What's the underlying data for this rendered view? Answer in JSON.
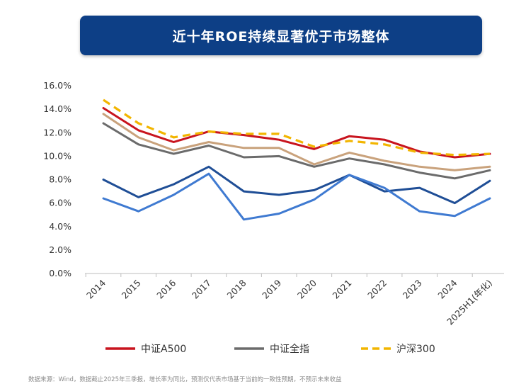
{
  "header": {
    "title": "近十年ROE持续显著优于市场整体"
  },
  "footer": {
    "source": "数据来源：Wind，数据截止2025年三季报，增长率为同比，预测仅代表市场基于当前的一致性预期，不预示未来收益"
  },
  "chart_data": {
    "type": "line",
    "title": "近十年ROE持续显著优于市场整体",
    "xlabel": "",
    "ylabel": "",
    "categories": [
      "2014",
      "2015",
      "2016",
      "2017",
      "2018",
      "2019",
      "2020",
      "2021",
      "2022",
      "2023",
      "2024",
      "2025H1(年化)"
    ],
    "y_ticks": [
      "0.0%",
      "2.0%",
      "4.0%",
      "6.0%",
      "8.0%",
      "10.0%",
      "12.0%",
      "14.0%",
      "16.0%"
    ],
    "ylim": [
      0,
      16
    ],
    "grid": false,
    "legend_position": "bottom",
    "series": [
      {
        "name": "中证A500",
        "color": "#c8141e",
        "dash": false,
        "in_legend": true,
        "values": [
          14.1,
          12.2,
          11.2,
          12.1,
          11.8,
          11.4,
          10.6,
          11.7,
          11.4,
          10.4,
          9.9,
          10.2
        ]
      },
      {
        "name": "",
        "color": "#c9a27c",
        "dash": false,
        "in_legend": false,
        "values": [
          13.6,
          11.6,
          10.5,
          11.2,
          10.7,
          10.7,
          9.3,
          10.3,
          9.6,
          9.1,
          8.8,
          9.1
        ]
      },
      {
        "name": "中证全指",
        "color": "#6b6b6b",
        "dash": false,
        "in_legend": true,
        "values": [
          12.8,
          11.0,
          10.2,
          10.9,
          9.9,
          10.0,
          9.1,
          9.8,
          9.3,
          8.6,
          8.1,
          8.8
        ]
      },
      {
        "name": "沪深300",
        "color": "#f2b500",
        "dash": true,
        "in_legend": true,
        "values": [
          14.8,
          12.8,
          11.6,
          12.1,
          11.9,
          11.9,
          10.8,
          11.3,
          11.0,
          10.3,
          10.1,
          10.2
        ]
      },
      {
        "name": "",
        "color": "#1f4e96",
        "dash": false,
        "in_legend": false,
        "values": [
          8.0,
          6.5,
          7.6,
          9.1,
          7.0,
          6.7,
          7.1,
          8.4,
          7.0,
          7.3,
          6.0,
          7.9
        ]
      },
      {
        "name": "",
        "color": "#3f7ad1",
        "dash": false,
        "in_legend": false,
        "values": [
          6.4,
          5.3,
          6.7,
          8.5,
          4.6,
          5.1,
          6.3,
          8.4,
          7.3,
          5.3,
          4.9,
          6.4
        ]
      }
    ]
  }
}
